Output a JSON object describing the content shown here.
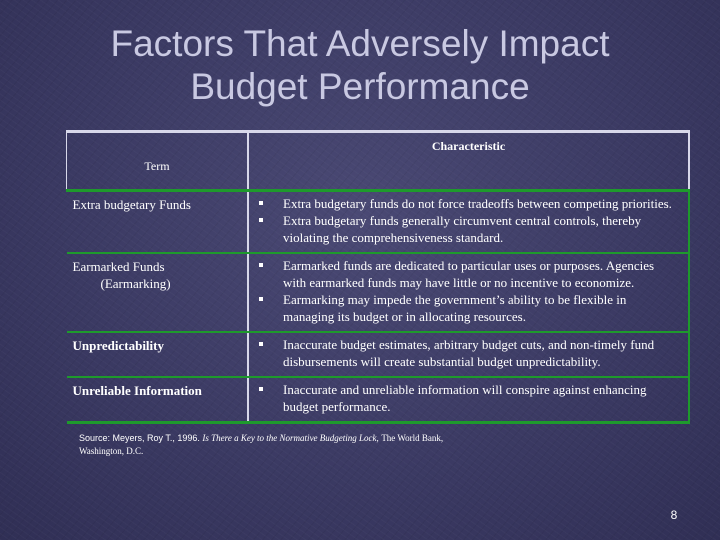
{
  "title": {
    "line1": "Factors That Adversely Impact",
    "line2": "Budget Performance"
  },
  "table": {
    "headers": {
      "term": "Term",
      "characteristic": "Characteristic"
    },
    "rows": [
      {
        "term": "Extra budgetary Funds",
        "items": [
          "Extra budgetary funds do not force tradeoffs between competing priorities.",
          "Extra budgetary funds generally circumvent central controls, thereby violating the comprehensiveness standard."
        ]
      },
      {
        "term_line1": "Earmarked Funds",
        "term_line2": "(Earmarking)",
        "items": [
          "Earmarked funds are dedicated to particular uses or purposes. Agencies with earmarked funds may have little or no incentive to economize.",
          "Earmarking may impede the government’s ability to be flexible in managing its budget or in allocating resources."
        ]
      },
      {
        "term": "Unpredictability",
        "items": [
          "Inaccurate budget estimates, arbitrary budget cuts, and non-timely fund disbursements will create substantial budget unpredictability."
        ]
      },
      {
        "term": "Unreliable Information",
        "items": [
          "Inaccurate and unreliable information will conspire against enhancing budget performance."
        ]
      }
    ]
  },
  "source": {
    "prefix": "Source: Meyers, Roy T., 1996.",
    "italic": "Is There a Key to the Normative Budgeting Lock,",
    "publisher": "The World Bank,",
    "location": "Washington, D.C."
  },
  "page_number": "8",
  "colors": {
    "background": "#3b3a63",
    "title": "#c9c9e2",
    "rule_green": "#1e9a2c"
  }
}
